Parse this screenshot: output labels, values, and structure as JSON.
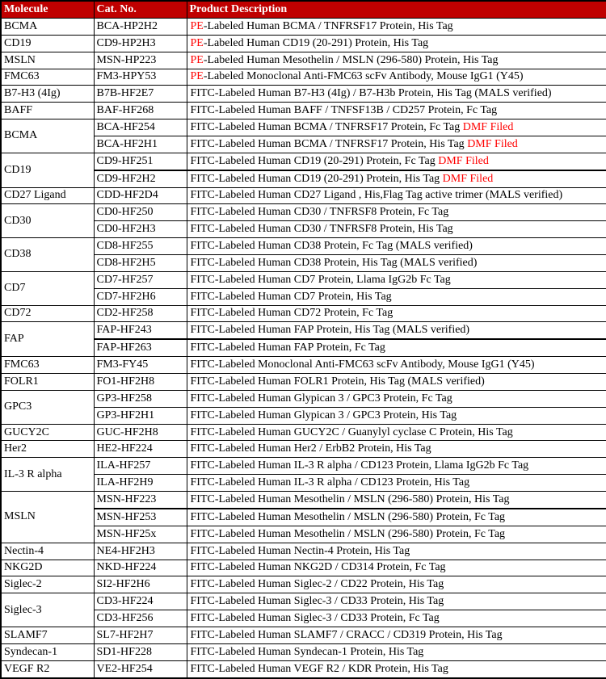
{
  "colors": {
    "header_bg": "#C00000",
    "accent_red": "#FF0000",
    "border": "#000000",
    "header_text": "#FFFFFF"
  },
  "header": {
    "columns": [
      "Molecule",
      "Cat. No.",
      "Product Description"
    ]
  },
  "groups": [
    {
      "molecule": "BCMA",
      "rows": [
        {
          "cat": "BCA-HP2H2",
          "pre": "PE",
          "desc": "-Labeled Human BCMA / TNFRSF17 Protein, His Tag",
          "suffix": ""
        }
      ]
    },
    {
      "molecule": "CD19",
      "rows": [
        {
          "cat": "CD9-HP2H3",
          "pre": "PE",
          "desc": "-Labeled Human CD19 (20-291) Protein, His Tag",
          "suffix": ""
        }
      ]
    },
    {
      "molecule": "MSLN",
      "rows": [
        {
          "cat": "MSN-HP223",
          "pre": "PE",
          "desc": "-Labeled Human Mesothelin / MSLN (296-580) Protein, His Tag",
          "suffix": ""
        }
      ]
    },
    {
      "molecule": "FMC63",
      "rows": [
        {
          "cat": "FM3-HPY53",
          "pre": "PE",
          "desc": "-Labeled Monoclonal Anti-FMC63 scFv Antibody, Mouse IgG1 (Y45)",
          "suffix": ""
        }
      ]
    },
    {
      "molecule": "B7-H3 (4Ig)",
      "rows": [
        {
          "cat": "B7B-HF2E7",
          "pre": "",
          "desc": "FITC-Labeled Human B7-H3 (4Ig) / B7-H3b Protein, His Tag (MALS verified)",
          "suffix": ""
        }
      ]
    },
    {
      "molecule": "BAFF",
      "rows": [
        {
          "cat": "BAF-HF268",
          "pre": "",
          "desc": "FITC-Labeled Human BAFF / TNFSF13B / CD257 Protein, Fc Tag",
          "suffix": ""
        }
      ]
    },
    {
      "molecule": "BCMA",
      "rows": [
        {
          "cat": "BCA-HF254",
          "pre": "",
          "desc": "FITC-Labeled Human BCMA / TNFRSF17 Protein, Fc Tag",
          "suffix": "DMF Filed"
        },
        {
          "cat": "BCA-HF2H1",
          "pre": "",
          "desc": "FITC-Labeled Human BCMA / TNFRSF17 Protein, His Tag",
          "suffix": "DMF Filed"
        }
      ]
    },
    {
      "molecule": "CD19",
      "rows": [
        {
          "cat": "CD9-HF251",
          "pre": "",
          "desc": "FITC-Labeled Human CD19 (20-291) Protein, Fc Tag",
          "suffix": "DMF Filed",
          "seam_below": true
        },
        {
          "cat": "CD9-HF2H2",
          "pre": "",
          "desc": "FITC-Labeled Human CD19 (20-291) Protein, His Tag",
          "suffix": "DMF Filed"
        }
      ]
    },
    {
      "molecule": "CD27 Ligand",
      "rows": [
        {
          "cat": "CDD-HF2D4",
          "pre": "",
          "desc": "FITC-Labeled Human CD27 Ligand , His,Flag Tag active trimer (MALS verified)",
          "suffix": ""
        }
      ]
    },
    {
      "molecule": "CD30",
      "rows": [
        {
          "cat": "CD0-HF250",
          "pre": "",
          "desc": "FITC-Labeled Human CD30 / TNFRSF8 Protein, Fc Tag",
          "suffix": ""
        },
        {
          "cat": "CD0-HF2H3",
          "pre": "",
          "desc": "FITC-Labeled Human CD30 / TNFRSF8 Protein, His Tag",
          "suffix": ""
        }
      ]
    },
    {
      "molecule": "CD38",
      "rows": [
        {
          "cat": "CD8-HF255",
          "pre": "",
          "desc": "FITC-Labeled Human CD38 Protein, Fc Tag (MALS verified)",
          "suffix": ""
        },
        {
          "cat": "CD8-HF2H5",
          "pre": "",
          "desc": "FITC-Labeled Human CD38 Protein, His Tag (MALS verified)",
          "suffix": ""
        }
      ]
    },
    {
      "molecule": "CD7",
      "rows": [
        {
          "cat": "CD7-HF257",
          "pre": "",
          "desc": "FITC-Labeled Human CD7 Protein, Llama IgG2b Fc Tag",
          "suffix": ""
        },
        {
          "cat": "CD7-HF2H6",
          "pre": "",
          "desc": "FITC-Labeled Human CD7 Protein, His Tag",
          "suffix": ""
        }
      ]
    },
    {
      "molecule": "CD72",
      "rows": [
        {
          "cat": "CD2-HF258",
          "pre": "",
          "desc": "FITC-Labeled Human CD72 Protein, Fc Tag",
          "suffix": ""
        }
      ]
    },
    {
      "molecule": "FAP",
      "rows": [
        {
          "cat": "FAP-HF243",
          "pre": "",
          "desc": "FITC-Labeled Human FAP Protein, His Tag (MALS verified)",
          "suffix": "",
          "seam_below": true
        },
        {
          "cat": "FAP-HF263",
          "pre": "",
          "desc": "FITC-Labeled Human FAP Protein, Fc Tag",
          "suffix": ""
        }
      ]
    },
    {
      "molecule": "FMC63",
      "rows": [
        {
          "cat": "FM3-FY45",
          "pre": "",
          "desc": "FITC-Labeled Monoclonal Anti-FMC63 scFv Antibody, Mouse IgG1 (Y45)",
          "suffix": ""
        }
      ]
    },
    {
      "molecule": "FOLR1",
      "rows": [
        {
          "cat": "FO1-HF2H8",
          "pre": "",
          "desc": "FITC-Labeled Human FOLR1 Protein, His Tag (MALS verified)",
          "suffix": ""
        }
      ]
    },
    {
      "molecule": "GPC3",
      "rows": [
        {
          "cat": "GP3-HF258",
          "pre": "",
          "desc": "FITC-Labeled Human Glypican 3 / GPC3 Protein, Fc Tag",
          "suffix": ""
        },
        {
          "cat": "GP3-HF2H1",
          "pre": "",
          "desc": "FITC-Labeled Human Glypican 3 / GPC3 Protein, His Tag",
          "suffix": ""
        }
      ]
    },
    {
      "molecule": "GUCY2C",
      "rows": [
        {
          "cat": "GUC-HF2H8",
          "pre": "",
          "desc": "FITC-Labeled Human GUCY2C / Guanylyl cyclase C Protein, His Tag",
          "suffix": ""
        }
      ]
    },
    {
      "molecule": "Her2",
      "rows": [
        {
          "cat": "HE2-HF224",
          "pre": "",
          "desc": "FITC-Labeled Human Her2 / ErbB2 Protein, His Tag",
          "suffix": ""
        }
      ]
    },
    {
      "molecule": "IL-3 R alpha",
      "rows": [
        {
          "cat": "ILA-HF257",
          "pre": "",
          "desc": "FITC-Labeled Human IL-3 R alpha / CD123 Protein, Llama IgG2b Fc Tag",
          "suffix": ""
        },
        {
          "cat": "ILA-HF2H9",
          "pre": "",
          "desc": "FITC-Labeled Human IL-3 R alpha / CD123 Protein, His Tag",
          "suffix": ""
        }
      ]
    },
    {
      "molecule": "MSLN",
      "rows": [
        {
          "cat": "MSN-HF223",
          "pre": "",
          "desc": "FITC-Labeled Human Mesothelin / MSLN (296-580) Protein, His Tag",
          "suffix": "",
          "seam_below": true
        },
        {
          "cat": "MSN-HF253",
          "pre": "",
          "desc": "FITC-Labeled Human Mesothelin / MSLN (296-580) Protein, Fc Tag",
          "suffix": ""
        },
        {
          "cat": "MSN-HF25x",
          "pre": "",
          "desc": "FITC-Labeled Human Mesothelin / MSLN (296-580) Protein, Fc Tag",
          "suffix": ""
        }
      ]
    },
    {
      "molecule": "Nectin-4",
      "rows": [
        {
          "cat": "NE4-HF2H3",
          "pre": "",
          "desc": "FITC-Labeled Human Nectin-4 Protein, His Tag",
          "suffix": ""
        }
      ]
    },
    {
      "molecule": "NKG2D",
      "rows": [
        {
          "cat": "NKD-HF224",
          "pre": "",
          "desc": "FITC-Labeled Human NKG2D / CD314 Protein, Fc Tag",
          "suffix": ""
        }
      ]
    },
    {
      "molecule": "Siglec-2",
      "rows": [
        {
          "cat": "SI2-HF2H6",
          "pre": "",
          "desc": "FITC-Labeled Human Siglec-2 / CD22 Protein, His Tag",
          "suffix": ""
        }
      ]
    },
    {
      "molecule": "Siglec-3",
      "rows": [
        {
          "cat": "CD3-HF224",
          "pre": "",
          "desc": "FITC-Labeled Human Siglec-3 / CD33 Protein, His Tag",
          "suffix": ""
        },
        {
          "cat": "CD3-HF256",
          "pre": "",
          "desc": "FITC-Labeled Human Siglec-3 / CD33 Protein, Fc Tag",
          "suffix": ""
        }
      ]
    },
    {
      "molecule": "SLAMF7",
      "rows": [
        {
          "cat": "SL7-HF2H7",
          "pre": "",
          "desc": "FITC-Labeled Human SLAMF7 / CRACC / CD319 Protein, His Tag",
          "suffix": ""
        }
      ]
    },
    {
      "molecule": "Syndecan-1",
      "rows": [
        {
          "cat": "SD1-HF228",
          "pre": "",
          "desc": "FITC-Labeled Human Syndecan-1 Protein, His Tag",
          "suffix": ""
        }
      ]
    },
    {
      "molecule": "VEGF R2",
      "rows": [
        {
          "cat": "VE2-HF254",
          "pre": "",
          "desc": "FITC-Labeled Human VEGF R2 / KDR Protein, His Tag",
          "suffix": ""
        }
      ]
    }
  ]
}
